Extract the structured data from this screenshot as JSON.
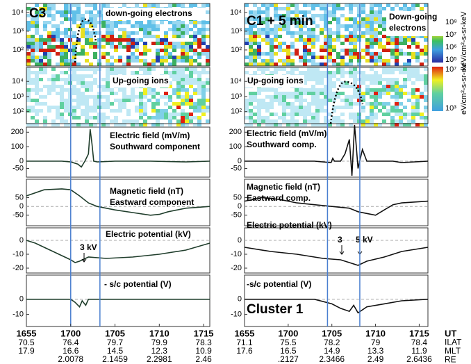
{
  "chart_data": [
    {
      "title": "C3",
      "xlim": [
        0,
        20.7
      ],
      "xticks": [
        {
          "value": 0,
          "label": "1655"
        },
        {
          "value": 5,
          "label": "1700"
        },
        {
          "value": 10,
          "label": "1705"
        },
        {
          "value": 15,
          "label": "1710"
        },
        {
          "value": 20,
          "label": "1715"
        }
      ],
      "markers": [
        5,
        8.3
      ],
      "marker_color": "#4a7fd0",
      "ILAT": [
        "70.5",
        "76.4",
        "79.7",
        "79.9",
        "78.3"
      ],
      "MLT": [
        "17.9",
        "16.6",
        "14.5",
        "12.3",
        "10.9"
      ],
      "RE": [
        null,
        "2.0078",
        "2.1459",
        "2.2981",
        "2.46"
      ],
      "panels": [
        {
          "type": "spectrogram",
          "title": "down-going electrons",
          "log": true,
          "ylim": [
            14,
            30000
          ],
          "yticks": [
            {
              "value": 10000,
              "label": "10⁴"
            },
            {
              "value": 1000,
              "label": "10³"
            },
            {
              "value": 100,
              "label": "10²"
            }
          ]
        },
        {
          "type": "spectrogram",
          "title": "Up-going ions",
          "log": true,
          "ylim": [
            16,
            85000
          ],
          "yticks": [
            {
              "value": 10000,
              "label": "10⁴"
            },
            {
              "value": 1000,
              "label": "10³"
            },
            {
              "value": 100,
              "label": "10²"
            }
          ]
        },
        {
          "type": "line",
          "title": "Electric field (mV/m)",
          "subtitle": "Southward component",
          "ylim": [
            -110,
            235
          ],
          "yticks": [
            200,
            100,
            0,
            -50
          ],
          "color": "#1f3d2b",
          "x": [
            0,
            2,
            4,
            5,
            5.8,
            6.2,
            6.6,
            7.0,
            7.2,
            7.4,
            7.6,
            8,
            10,
            14,
            18,
            20.7
          ],
          "values": [
            0,
            0,
            0,
            -5,
            -20,
            -40,
            0,
            50,
            220,
            120,
            0,
            -5,
            0,
            0,
            -5,
            0
          ]
        },
        {
          "type": "line",
          "title": "Magnetic field (nT)",
          "subtitle": "Eastward component",
          "ylim": [
            -110,
            155
          ],
          "yticks": [
            50,
            0,
            -50
          ],
          "color": "#1f3d2b",
          "x": [
            0,
            2,
            4,
            5,
            6,
            7,
            8,
            9,
            10,
            12,
            14,
            15,
            16,
            18,
            20.7
          ],
          "values": [
            60,
            95,
            100,
            95,
            60,
            20,
            0,
            -10,
            -20,
            -35,
            -50,
            -45,
            -30,
            -10,
            0
          ]
        },
        {
          "type": "line",
          "title": "Electric potential (kV)",
          "annotations": [
            "3 kV"
          ],
          "ylim": [
            -23.5,
            9
          ],
          "yticks": [
            0,
            -10,
            -20
          ],
          "color": "#1f3d2b",
          "x": [
            0,
            1,
            2,
            3,
            4,
            5,
            5.5,
            6,
            7,
            9,
            12,
            15,
            18,
            20.7
          ],
          "values": [
            0,
            -2,
            -5,
            -8,
            -11,
            -14,
            -16,
            -15,
            -12,
            -13,
            -12,
            -10,
            -7,
            -2
          ]
        },
        {
          "type": "line",
          "title": "- s/c potential (V)",
          "ylim": [
            -18,
            16
          ],
          "yticks": [
            0,
            -10
          ],
          "color": "#1f3d2b",
          "x": [
            0,
            3,
            5,
            5.5,
            6,
            6.3,
            6.7,
            7,
            10,
            15,
            20.7
          ],
          "values": [
            0,
            0,
            0,
            -2,
            -5,
            -1,
            -4,
            0,
            0,
            0,
            0
          ]
        }
      ]
    },
    {
      "title": "C1 + 5 min",
      "xlim": [
        0,
        21
      ],
      "xticks": [
        {
          "value": 0,
          "label": "1655"
        },
        {
          "value": 5,
          "label": "1700"
        },
        {
          "value": 10,
          "label": "1705"
        },
        {
          "value": 15,
          "label": "1710"
        },
        {
          "value": 20,
          "label": "1715"
        }
      ],
      "markers": [
        9.5,
        13.2
      ],
      "marker_color": "#4a7fd0",
      "ILAT": [
        "71.1",
        "75.5",
        "78.2",
        "79",
        "78.4"
      ],
      "MLT": [
        "17.6",
        "16.5",
        "14.9",
        "13.3",
        "11.9"
      ],
      "RE": [
        null,
        ".2127",
        "2.3466",
        "2.49",
        "2.6436"
      ],
      "panels": [
        {
          "type": "spectrogram",
          "title": "Down-going",
          "subtitle": "electrons",
          "log": true,
          "ylim": [
            14,
            30000
          ],
          "yticks": [
            {
              "value": 10000,
              "label": "10⁴"
            },
            {
              "value": 1000,
              "label": "10³"
            },
            {
              "value": 100,
              "label": "10²"
            }
          ]
        },
        {
          "type": "spectrogram",
          "title": "Up-going ions",
          "log": true,
          "ylim": [
            16,
            85000
          ],
          "yticks": [
            {
              "value": 10000,
              "label": "10⁴"
            },
            {
              "value": 1000,
              "label": "10³"
            },
            {
              "value": 100,
              "label": "10²"
            }
          ]
        },
        {
          "type": "line",
          "title": "Electric field (mV/m)",
          "subtitle": "Southward comp.",
          "ylim": [
            -110,
            235
          ],
          "yticks": [
            200,
            100,
            0,
            -50
          ],
          "color": "#111",
          "x": [
            0,
            8,
            9.9,
            10.1,
            10.3,
            11,
            11.5,
            12,
            12.3,
            12.6,
            13,
            13.5,
            14,
            17,
            18,
            21
          ],
          "values": [
            0,
            0,
            -10,
            20,
            0,
            0,
            50,
            150,
            -100,
            250,
            -50,
            80,
            0,
            0,
            -10,
            0
          ]
        },
        {
          "type": "line",
          "title": "Magnetic field (nT)",
          "subtitle": "Eastward comp.",
          "ylim": [
            -110,
            155
          ],
          "yticks": [
            50,
            0,
            -50
          ],
          "color": "#111",
          "x": [
            0,
            2,
            4,
            6,
            8,
            10,
            12,
            13,
            14,
            15,
            16,
            17,
            18,
            21
          ],
          "values": [
            30,
            50,
            40,
            20,
            10,
            0,
            -10,
            -30,
            -40,
            -50,
            -20,
            10,
            20,
            30
          ]
        },
        {
          "type": "line",
          "title": "Electric potential (kV)",
          "annotations": [
            "3",
            "5 kV"
          ],
          "ylim": [
            -23.5,
            9
          ],
          "yticks": [
            0,
            -10,
            -20
          ],
          "color": "#111",
          "x": [
            0,
            3,
            6,
            9,
            11,
            12,
            13,
            14,
            16,
            18,
            21
          ],
          "values": [
            -5,
            -8,
            -10,
            -13,
            -14,
            -16,
            -18,
            -15,
            -12,
            -8,
            -5
          ]
        },
        {
          "type": "line",
          "title": "-s/c potential (V)",
          "annotations": [
            "Cluster 1"
          ],
          "ylim": [
            -18,
            16
          ],
          "yticks": [
            0,
            -10
          ],
          "color": "#111",
          "x": [
            0,
            8,
            10,
            11,
            12,
            12.5,
            13,
            14,
            16,
            18,
            21
          ],
          "values": [
            0,
            0,
            -3,
            -6,
            -8,
            -4,
            -9,
            -5,
            -3,
            -1,
            0
          ]
        }
      ]
    }
  ],
  "row_labels": [
    "UT",
    "ILAT",
    "MLT",
    "RE"
  ],
  "colorbars": [
    {
      "ticks": [
        "10⁸",
        "10⁷",
        "10⁶",
        "10⁵"
      ],
      "unit": "keV/cm²-s-sr-keV"
    },
    {
      "ticks": [
        "10⁷",
        "10³"
      ],
      "unit": "eV/cm²-s-sr-eV"
    }
  ]
}
